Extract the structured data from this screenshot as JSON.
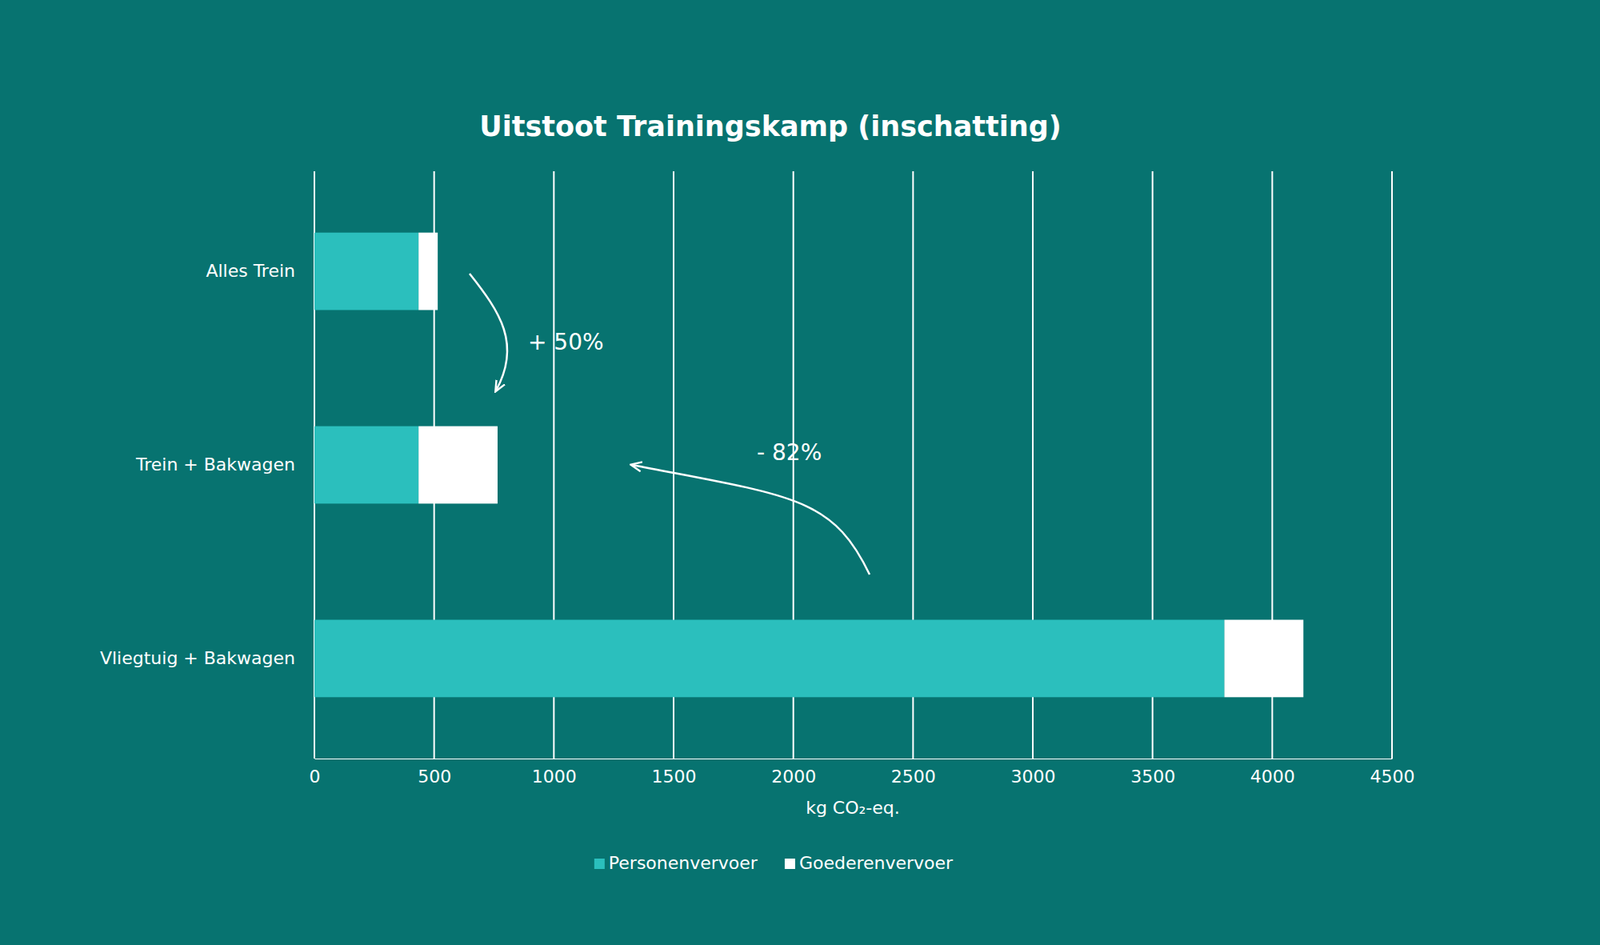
{
  "chart_data": {
    "type": "bar",
    "orientation": "horizontal",
    "stacked": true,
    "title": "Uitstoot Trainingskamp (inschatting)",
    "x_label": "kg CO₂-eq.",
    "categories": [
      "Alles Trein",
      "Trein + Bakwagen",
      "Vliegtuig + Bakwagen"
    ],
    "series": [
      {
        "name": "Personenvervoer",
        "color": "#2bbfbd",
        "values": [
          435,
          435,
          3800
        ]
      },
      {
        "name": "Goederenvervoer",
        "color": "#ffffff",
        "values": [
          80,
          330,
          330
        ]
      }
    ],
    "xlim": [
      0,
      4500
    ],
    "xticks": [
      0,
      500,
      1000,
      1500,
      2000,
      2500,
      3000,
      3500,
      4000,
      4500
    ],
    "grid": true,
    "legend": "bottom",
    "annotations": [
      "+ 50%",
      "- 82%"
    ]
  }
}
